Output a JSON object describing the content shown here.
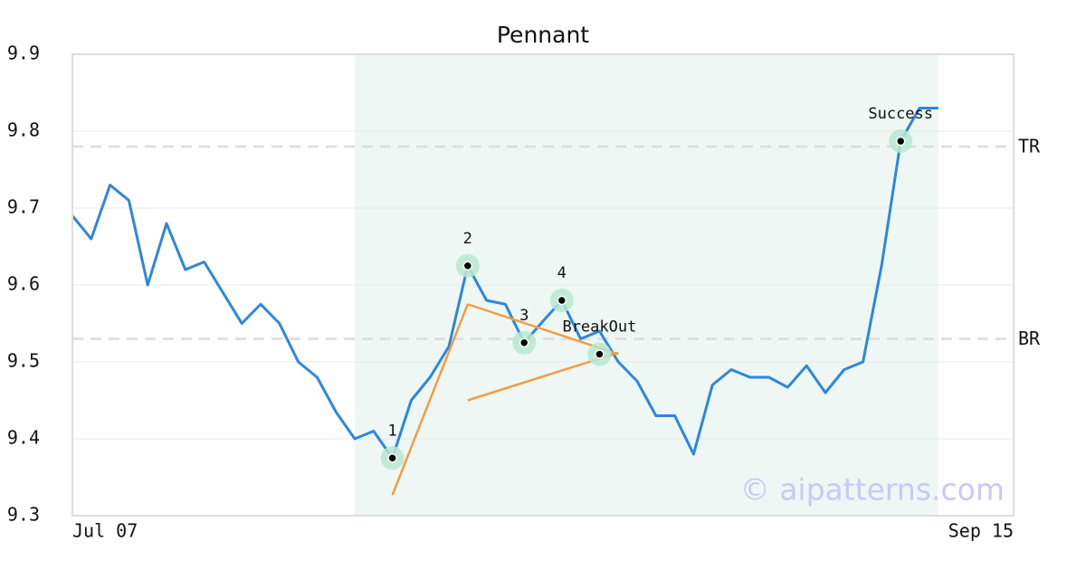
{
  "chart_data": {
    "type": "line",
    "title": "Pennant",
    "categories": [
      "Jul 07",
      null,
      null,
      null,
      null,
      null,
      null,
      null,
      null,
      null,
      null,
      null,
      null,
      null,
      null,
      null,
      null,
      null,
      null,
      null,
      null,
      null,
      null,
      null,
      null,
      null,
      null,
      null,
      null,
      null,
      null,
      null,
      null,
      null,
      null,
      null,
      null,
      null,
      null,
      null,
      null,
      null,
      null,
      null,
      null,
      null,
      null,
      null,
      null,
      null,
      "Sep 15"
    ],
    "series": [
      {
        "color": "#2e86de",
        "values": [
          9.69,
          9.66,
          9.73,
          9.71,
          9.6,
          9.68,
          9.62,
          9.63,
          9.59,
          9.55,
          9.575,
          9.55,
          9.5,
          9.48,
          9.435,
          9.4,
          9.41,
          9.375,
          9.45,
          9.48,
          9.52,
          9.625,
          9.58,
          9.575,
          9.525,
          9.553,
          9.58,
          9.53,
          9.54,
          9.5,
          9.475,
          9.43,
          9.43,
          9.38,
          9.47,
          9.49,
          9.48,
          9.48,
          9.467,
          9.495,
          9.46,
          9.49,
          9.5,
          9.627,
          9.787,
          9.83,
          9.83,
          null,
          null,
          null,
          null
        ]
      }
    ],
    "markers": {
      "values": [
        null,
        null,
        null,
        null,
        null,
        null,
        null,
        null,
        null,
        null,
        null,
        null,
        null,
        null,
        null,
        null,
        null,
        9.375,
        null,
        null,
        null,
        9.625,
        null,
        null,
        9.525,
        null,
        9.58,
        null,
        9.51,
        null,
        null,
        null,
        null,
        null,
        null,
        null,
        null,
        null,
        null,
        null,
        null,
        null,
        null,
        null,
        9.787,
        null,
        null,
        null,
        null,
        null,
        null
      ],
      "labels": [
        null,
        null,
        null,
        null,
        null,
        null,
        null,
        null,
        null,
        null,
        null,
        null,
        null,
        null,
        null,
        null,
        null,
        "1",
        null,
        null,
        null,
        "2",
        null,
        null,
        "3",
        null,
        "4",
        null,
        "BreakOut",
        null,
        null,
        null,
        null,
        null,
        null,
        null,
        null,
        null,
        null,
        null,
        null,
        null,
        null,
        null,
        "Success",
        null,
        null,
        null,
        null,
        null,
        null
      ]
    },
    "trendlines": [
      {
        "color": "#f59b42",
        "values": [
          null,
          null,
          null,
          null,
          null,
          null,
          null,
          null,
          null,
          null,
          null,
          null,
          null,
          null,
          null,
          null,
          null,
          9.327,
          null,
          null,
          null,
          9.575,
          null,
          null,
          null,
          null,
          null,
          null,
          null,
          9.51,
          null,
          null,
          null,
          null,
          null,
          null,
          null,
          null,
          null,
          null,
          null,
          null,
          null,
          null,
          null,
          null,
          null,
          null,
          null,
          null,
          null
        ]
      },
      {
        "color": "#f59b42",
        "values": [
          null,
          null,
          null,
          null,
          null,
          null,
          null,
          null,
          null,
          null,
          null,
          null,
          null,
          null,
          null,
          null,
          null,
          null,
          null,
          null,
          null,
          9.45,
          null,
          null,
          null,
          null,
          null,
          null,
          null,
          9.512,
          null,
          null,
          null,
          null,
          null,
          null,
          null,
          null,
          null,
          null,
          null,
          null,
          null,
          null,
          null,
          null,
          null,
          null,
          null,
          null,
          null
        ]
      }
    ],
    "reference_lines": [
      {
        "label": "TR",
        "value": 9.78
      },
      {
        "label": "BR",
        "value": 9.53
      }
    ],
    "ylim": [
      9.3,
      9.9
    ],
    "yticks": [
      9.3,
      9.4,
      9.5,
      9.6,
      9.7,
      9.8,
      9.9
    ],
    "grid": true,
    "watermark": "© aipatterns.com"
  }
}
